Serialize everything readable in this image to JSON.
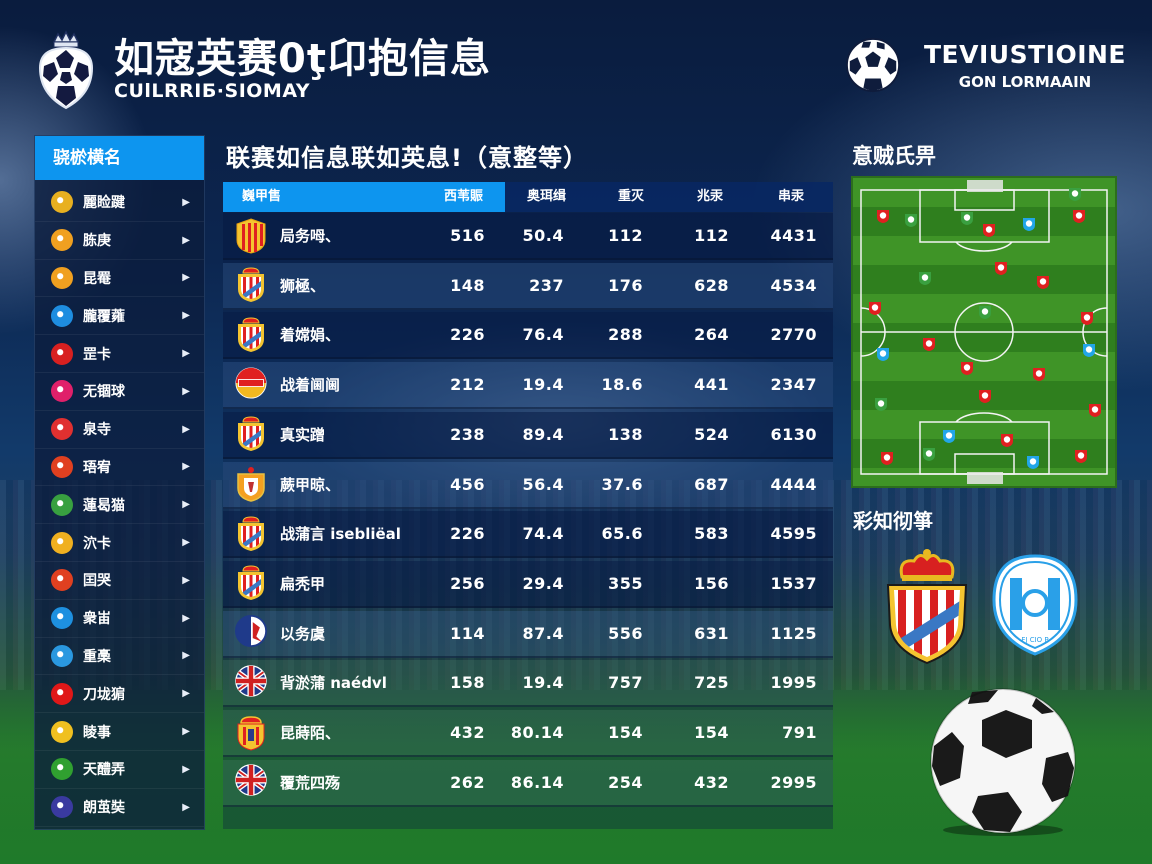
{
  "header": {
    "title": "如寇英赛0ţ卬抱信息",
    "subtitle": "CUlLRRIБ·SIOMAY",
    "right_title": "TEVIUSTIOINE",
    "right_subtitle": "GON LORMAAIN"
  },
  "sidebar": {
    "title": "骁棜横名",
    "items": [
      {
        "label": "麗睑踺",
        "icon": "league-crest-yellow-red",
        "color": "#e8b020"
      },
      {
        "label": "胨庚",
        "icon": "club-crest-orange",
        "color": "#f0a020"
      },
      {
        "label": "昆罨",
        "icon": "club-crest-orange",
        "color": "#f0a020"
      },
      {
        "label": "朧覆蕹",
        "icon": "club-crest-blue",
        "color": "#1e8de0"
      },
      {
        "label": "罡卡",
        "icon": "club-crest-red-white",
        "color": "#d82020"
      },
      {
        "label": "无锢球",
        "icon": "club-crest-pink",
        "color": "#e0206a"
      },
      {
        "label": "泉寺",
        "icon": "club-crest-stripes",
        "color": "#e03030"
      },
      {
        "label": "珸宥",
        "icon": "club-crest-red-yellow",
        "color": "#e04020"
      },
      {
        "label": "蓮曷猫",
        "icon": "club-crest-green",
        "color": "#38a040"
      },
      {
        "label": "泬卡",
        "icon": "club-crest-yellow-stripes",
        "color": "#f0b020"
      },
      {
        "label": "囯哭",
        "icon": "club-crest-red-yellow",
        "color": "#e04020"
      },
      {
        "label": "衆峀",
        "icon": "club-crest-blue",
        "color": "#1e90e0"
      },
      {
        "label": "重槀",
        "icon": "club-crest-lightblue",
        "color": "#2a98e0"
      },
      {
        "label": "刀垅猏",
        "icon": "club-crest-red",
        "color": "#e01818"
      },
      {
        "label": "睖事",
        "icon": "club-crest-yellow-ring",
        "color": "#f0c020"
      },
      {
        "label": "天醴弄",
        "icon": "club-crest-green",
        "color": "#30a030"
      },
      {
        "label": "朗茧奘",
        "icon": "club-crest-purple",
        "color": "#3a3aa0"
      }
    ]
  },
  "main": {
    "section_title": "联赛如信息联如英息!（意整等）",
    "columns": [
      "巍甲售",
      "西苇賑",
      "奥珥缉",
      "重灭",
      "兆汞",
      "串汞"
    ],
    "rows": [
      {
        "name": "局务呣、",
        "badge": "yellow-red-stripes-shield",
        "v": [
          "516",
          "50.4",
          "112",
          "112",
          "4431"
        ]
      },
      {
        "name": "狮極、",
        "badge": "red-white-stripes-crest",
        "v": [
          "148",
          "237",
          "176",
          "628",
          "4534"
        ]
      },
      {
        "name": "着嫦娟、",
        "badge": "red-white-stripes-crest",
        "v": [
          "226",
          "76.4",
          "288",
          "264",
          "2770"
        ]
      },
      {
        "name": "战着阃阃",
        "badge": "red-yellow-round",
        "v": [
          "212",
          "19.4",
          "18.6",
          "441",
          "2347"
        ]
      },
      {
        "name": "真实蹭",
        "badge": "red-white-stripes-crest",
        "v": [
          "238",
          "89.4",
          "138",
          "524",
          "6130"
        ]
      },
      {
        "name": "蕨甲晾、",
        "badge": "orange-crest",
        "v": [
          "456",
          "56.4",
          "37.6",
          "687",
          "4444"
        ]
      },
      {
        "name": "战蒲言 isebliëal",
        "badge": "red-white-stripes-crest",
        "v": [
          "226",
          "74.4",
          "65.6",
          "583",
          "4595"
        ]
      },
      {
        "name": "扁秃甲",
        "badge": "red-white-stripes-crest",
        "v": [
          "256",
          "29.4",
          "355",
          "156",
          "1537"
        ]
      },
      {
        "name": "以务虞",
        "badge": "blue-white-red-round",
        "v": [
          "114",
          "87.4",
          "556",
          "631",
          "1125"
        ]
      },
      {
        "name": "背淤蒲 naédvl",
        "badge": "union-jack-round",
        "v": [
          "158",
          "19.4",
          "757",
          "725",
          "1995"
        ]
      },
      {
        "name": "昆蒔陌、",
        "badge": "yellow-red-crown-crest",
        "v": [
          "432",
          "80.14",
          "154",
          "154",
          "791"
        ]
      },
      {
        "name": "覆荒四殇",
        "badge": "union-jack-round",
        "v": [
          "262",
          "86.14",
          "254",
          "432",
          "2995"
        ]
      }
    ]
  },
  "right": {
    "tactic_title": "意贼氏畀",
    "teams_title": "彩知彻箏",
    "team_a": "red-white-striped-crowned-crest",
    "team_b": "light-blue-round-crest",
    "team_b_caption": "FJ CIO P"
  },
  "colors": {
    "accent": "#0d95ef",
    "panel": "#0c1c3c",
    "pitch": "#3f9427",
    "red_player": "#e02020",
    "blue_player": "#22a6e8",
    "green_player": "#3aa040"
  }
}
